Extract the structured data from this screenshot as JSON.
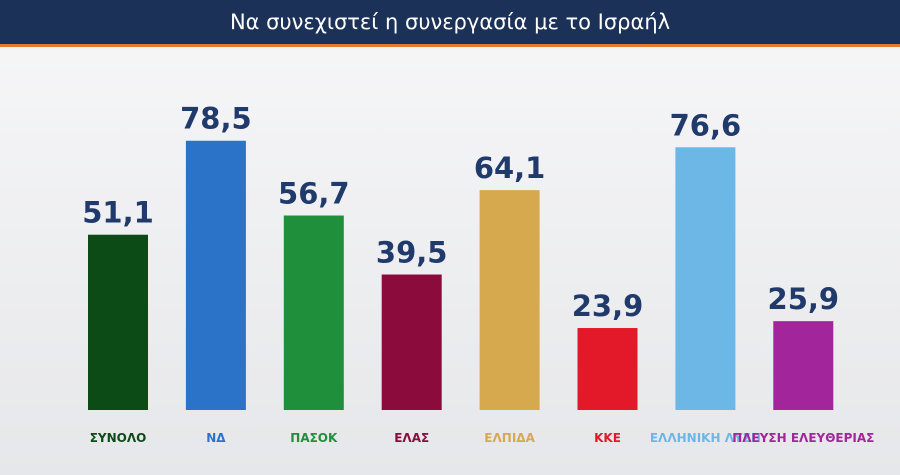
{
  "chart_data": {
    "type": "bar",
    "title": "Να συνεχιστεί η συνεργασία με το Ισραήλ",
    "categories": [
      "ΣΥΝΟΛΟ",
      "ΝΔ",
      "ΠΑΣΟΚ",
      "ΕΛΑΣ",
      "ΕΛΠΙΔΑ",
      "ΚΚΕ",
      "ΕΛΛΗΝΙΚΗ ΛΥΣΗ",
      "ΠΛΕΥΣΗ ΕΛΕΥΘΕΡΙΑΣ"
    ],
    "values": [
      51.1,
      78.5,
      56.7,
      39.5,
      64.1,
      23.9,
      76.6,
      25.9
    ],
    "value_labels": [
      "51,1",
      "78,5",
      "56,7",
      "39,5",
      "64,1",
      "23,9",
      "76,6",
      "25,9"
    ],
    "colors": [
      "#0c4a16",
      "#2a73c9",
      "#1f8f3c",
      "#8c0b3d",
      "#d6a94e",
      "#e3192a",
      "#6db7e7",
      "#a2259b"
    ]
  }
}
